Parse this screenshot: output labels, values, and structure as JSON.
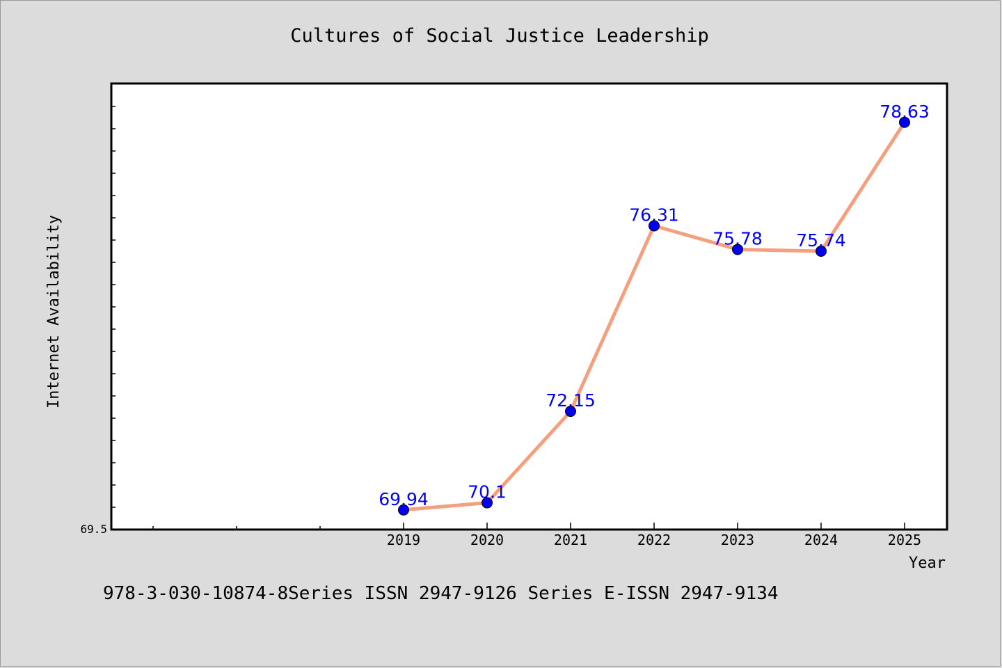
{
  "chart_data": {
    "type": "line",
    "title": "Cultures of Social Justice Leadership",
    "xlabel": "Year",
    "ylabel": "Internet Availability",
    "categories": [
      "2019",
      "2020",
      "2021",
      "2022",
      "2023",
      "2024",
      "2025"
    ],
    "series": [
      {
        "values": [
          69.94,
          70.1,
          72.15,
          76.31,
          75.78,
          75.74,
          78.63
        ],
        "data_labels": [
          "69.94",
          "70.1",
          "72.15",
          "76.31",
          "75.78",
          "75.74",
          "78.63"
        ],
        "line_color": "#f4a07e",
        "marker_color": "#0000ee"
      }
    ],
    "ylim": [
      69.5,
      79.5
    ],
    "ymin_tick_label": "69.5",
    "grid": false,
    "legend": "none"
  },
  "footer_text": "978-3-030-10874-8Series ISSN 2947-9126 Series E-ISSN 2947-9134",
  "colors": {
    "background": "#dcdcdc",
    "plot_area": "#ffffff",
    "data_label": "#0000ff"
  }
}
